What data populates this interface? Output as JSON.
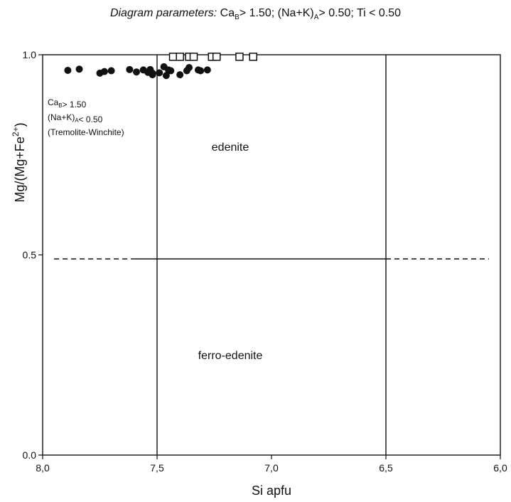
{
  "chart_data": {
    "type": "scatter",
    "title_lead": "Diagram parameters:",
    "title_rest": [
      {
        "text": "Ca"
      },
      {
        "sub": "B"
      },
      {
        "text": "> 1.50; (Na+K)"
      },
      {
        "sub": "A"
      },
      {
        "text": "> 0.50; Ti < 0.50"
      }
    ],
    "xlabel": "Si apfu",
    "ylabel": "Mg/(Mg+Fe",
    "ylabel_sup": "2+",
    "ylabel_end": ")",
    "xlim": [
      8.0,
      6.0
    ],
    "ylim": [
      0.0,
      1.0
    ],
    "x_ticks": [
      "8,0",
      "7,5",
      "7,0",
      "6,5",
      "6,0"
    ],
    "x_tick_values": [
      8.0,
      7.5,
      7.0,
      6.5,
      6.0
    ],
    "y_ticks": [
      "0.0",
      "0.5",
      "1.0"
    ],
    "y_tick_values": [
      0.0,
      0.5,
      1.0
    ],
    "vertical_boundaries": [
      7.5,
      6.5
    ],
    "horizontal_boundary": {
      "y": 0.49,
      "solid_from": 7.6,
      "solid_to": 6.5,
      "dashed_from": 7.95,
      "dashed_to": 6.05
    },
    "regions": [
      {
        "label": "edenite",
        "x": 7.18,
        "y": 0.76
      },
      {
        "label": "ferro-edenite",
        "x": 7.18,
        "y": 0.24
      }
    ],
    "side_note": [
      [
        {
          "text": "Ca"
        },
        {
          "sub": "B"
        },
        {
          "text": "> 1.50"
        }
      ],
      [
        {
          "text": "(Na+K)"
        },
        {
          "sub": "A"
        },
        {
          "text": "< 0.50"
        }
      ],
      [
        {
          "text": "(Tremolite-Winchite)"
        }
      ]
    ],
    "series": [
      {
        "marker": "filled-circle",
        "color": "#111111",
        "points": [
          [
            7.89,
            0.961
          ],
          [
            7.84,
            0.964
          ],
          [
            7.75,
            0.954
          ],
          [
            7.73,
            0.958
          ],
          [
            7.7,
            0.96
          ],
          [
            7.62,
            0.963
          ],
          [
            7.59,
            0.957
          ],
          [
            7.56,
            0.962
          ],
          [
            7.54,
            0.956
          ],
          [
            7.53,
            0.963
          ],
          [
            7.52,
            0.95
          ],
          [
            7.49,
            0.955
          ],
          [
            7.47,
            0.97
          ],
          [
            7.45,
            0.962
          ],
          [
            7.44,
            0.96
          ],
          [
            7.4,
            0.95
          ],
          [
            7.37,
            0.96
          ],
          [
            7.36,
            0.968
          ],
          [
            7.32,
            0.962
          ],
          [
            7.31,
            0.96
          ],
          [
            7.28,
            0.962
          ],
          [
            7.52,
            0.954
          ],
          [
            7.46,
            0.948
          ]
        ]
      },
      {
        "marker": "open-square",
        "color": "#111111",
        "points": [
          [
            7.43,
            0.995
          ],
          [
            7.4,
            0.995
          ],
          [
            7.36,
            0.995
          ],
          [
            7.34,
            0.995
          ],
          [
            7.26,
            0.995
          ],
          [
            7.24,
            0.995
          ],
          [
            7.14,
            0.995
          ],
          [
            7.08,
            0.995
          ]
        ]
      }
    ]
  }
}
